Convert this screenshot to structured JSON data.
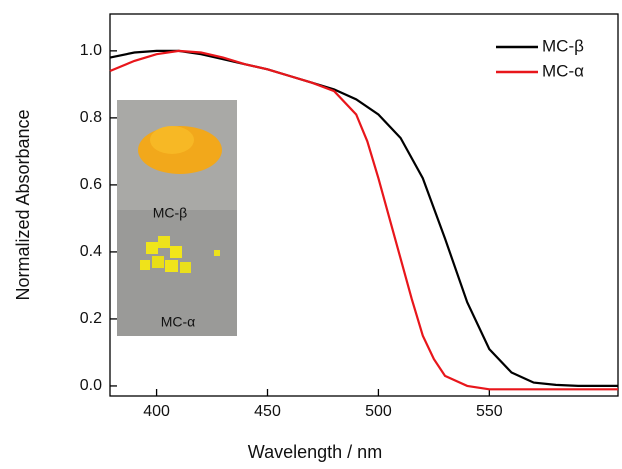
{
  "chart_data": {
    "type": "line",
    "xlabel": "Wavelength  / nm",
    "ylabel": "Normalized Absorbance",
    "xlim": [
      379,
      608
    ],
    "ylim": [
      -0.03,
      1.11
    ],
    "xticks": [
      400,
      450,
      500,
      550
    ],
    "yticks": [
      {
        "value": 0,
        "label": "0.0"
      },
      {
        "value": 0.2,
        "label": "0.2"
      },
      {
        "value": 0.4,
        "label": "0.4"
      },
      {
        "value": 0.6,
        "label": "0.6"
      },
      {
        "value": 0.8,
        "label": "0.8"
      },
      {
        "value": 1,
        "label": "1.0"
      }
    ],
    "legend": "upper right",
    "inset_labels": [
      "MC-β",
      "MC-α"
    ],
    "series": [
      {
        "name": "MC-β",
        "color": "#000000",
        "x": [
          379,
          390,
          400,
          410,
          420,
          430,
          440,
          450,
          460,
          470,
          480,
          490,
          500,
          510,
          520,
          530,
          540,
          550,
          560,
          570,
          580,
          590,
          608
        ],
        "values": [
          0.98,
          0.995,
          1.0,
          1.0,
          0.99,
          0.975,
          0.96,
          0.945,
          0.925,
          0.905,
          0.885,
          0.855,
          0.81,
          0.74,
          0.62,
          0.44,
          0.25,
          0.11,
          0.04,
          0.01,
          0.003,
          0.0,
          0.0
        ]
      },
      {
        "name": "MC-α",
        "color": "#e8161b",
        "x": [
          379,
          390,
          400,
          410,
          420,
          430,
          440,
          450,
          460,
          470,
          480,
          490,
          495,
          500,
          505,
          510,
          515,
          520,
          525,
          530,
          540,
          550,
          560,
          580,
          608
        ],
        "values": [
          0.94,
          0.97,
          0.99,
          1.0,
          0.995,
          0.98,
          0.96,
          0.945,
          0.925,
          0.905,
          0.88,
          0.81,
          0.73,
          0.62,
          0.5,
          0.38,
          0.26,
          0.15,
          0.08,
          0.03,
          0.0,
          -0.01,
          -0.01,
          -0.01,
          -0.01
        ]
      }
    ]
  }
}
